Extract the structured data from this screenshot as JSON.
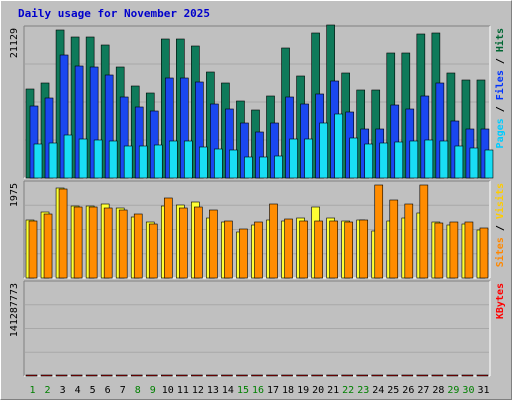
{
  "title": "Daily usage for November 2025",
  "chart_data": [
    {
      "type": "bar",
      "panel": "top",
      "max_label": "21129",
      "ylim": [
        0,
        21129
      ],
      "right_label_parts": [
        {
          "text": "Pages",
          "color": "#00ccff"
        },
        {
          "text": " / ",
          "color": "#000000"
        },
        {
          "text": "Files",
          "color": "#0033ff"
        },
        {
          "text": " / ",
          "color": "#000000"
        },
        {
          "text": "Hits",
          "color": "#006633"
        }
      ],
      "categories": [
        "1",
        "2",
        "3",
        "4",
        "5",
        "6",
        "7",
        "8",
        "9",
        "10",
        "11",
        "12",
        "13",
        "14",
        "15",
        "16",
        "17",
        "18",
        "19",
        "20",
        "21",
        "22",
        "23",
        "24",
        "25",
        "26",
        "27",
        "28",
        "29",
        "30",
        "31"
      ],
      "series": [
        {
          "name": "Hits",
          "color": "#0f7a5a",
          "values": [
            12700,
            13500,
            21129,
            20100,
            20100,
            19000,
            15800,
            13200,
            12100,
            19800,
            19800,
            18800,
            15200,
            13500,
            11000,
            9700,
            11700,
            18500,
            14500,
            20700,
            21800,
            15000,
            12600,
            12600,
            17800,
            17800,
            20500,
            20700,
            15000,
            14000,
            14000
          ]
        },
        {
          "name": "Files",
          "color": "#1a47f0",
          "values": [
            10300,
            11400,
            17600,
            16000,
            15900,
            14700,
            11500,
            10200,
            9600,
            14300,
            14300,
            13700,
            10600,
            9800,
            7900,
            6500,
            7800,
            11500,
            10600,
            12000,
            13800,
            9400,
            7000,
            7000,
            10400,
            9800,
            11700,
            13500,
            8100,
            7000,
            7000
          ]
        },
        {
          "name": "Pages",
          "color": "#19def5",
          "values": [
            4800,
            5000,
            6200,
            5600,
            5400,
            5300,
            4600,
            4600,
            4700,
            5300,
            5300,
            4400,
            4100,
            4000,
            3000,
            3000,
            3100,
            5500,
            5600,
            7800,
            9200,
            5700,
            4800,
            5000,
            5200,
            5300,
            5400,
            5300,
            4500,
            4300,
            4000
          ]
        }
      ]
    },
    {
      "type": "bar",
      "panel": "middle",
      "max_label": "1975",
      "ylim": [
        0,
        1975
      ],
      "right_label_parts": [
        {
          "text": "Sites",
          "color": "#ff8800"
        },
        {
          "text": " / ",
          "color": "#000000"
        },
        {
          "text": "Visits",
          "color": "#ffcc00"
        }
      ],
      "categories": [
        "1",
        "2",
        "3",
        "4",
        "5",
        "6",
        "7",
        "8",
        "9",
        "10",
        "11",
        "12",
        "13",
        "14",
        "15",
        "16",
        "17",
        "18",
        "19",
        "20",
        "21",
        "22",
        "23",
        "24",
        "25",
        "26",
        "27",
        "28",
        "29",
        "30",
        "31"
      ],
      "series": [
        {
          "name": "Visits",
          "color": "#ffff33",
          "values": [
            1240,
            1400,
            1920,
            1520,
            1530,
            1570,
            1480,
            1300,
            1190,
            1530,
            1560,
            1610,
            1270,
            1180,
            970,
            1130,
            1240,
            1200,
            1270,
            1510,
            1280,
            1200,
            1230,
            1000,
            1220,
            1270,
            1380,
            1180,
            1130,
            1150,
            1010
          ]
        },
        {
          "name": "Sites",
          "color": "#ff8c00",
          "values": [
            1210,
            1350,
            1880,
            1500,
            1500,
            1480,
            1440,
            1350,
            1140,
            1700,
            1490,
            1500,
            1450,
            1200,
            1050,
            1180,
            1580,
            1250,
            1200,
            1220,
            1220,
            1190,
            1240,
            1980,
            1650,
            1580,
            1980,
            1160,
            1190,
            1180,
            1060
          ]
        }
      ]
    },
    {
      "type": "bar",
      "panel": "bottom",
      "max_label": "141287773",
      "ylim": [
        0,
        141287773
      ],
      "right_label_parts": [
        {
          "text": "KBytes",
          "color": "#ff0000"
        }
      ],
      "categories": [
        "1",
        "2",
        "3",
        "4",
        "5",
        "6",
        "7",
        "8",
        "9",
        "10",
        "11",
        "12",
        "13",
        "14",
        "15",
        "16",
        "17",
        "18",
        "19",
        "20",
        "21",
        "22",
        "23",
        "24",
        "25",
        "26",
        "27",
        "28",
        "29",
        "30",
        "31"
      ],
      "series": [
        {
          "name": "KBytes",
          "color": "#ff0000",
          "values": [
            53000,
            54500,
            50500,
            52500,
            57000,
            98000,
            91000,
            100000,
            2000,
            96000,
            47000,
            47000,
            47000,
            45000,
            48000,
            51000,
            49000,
            50000,
            46000,
            46000,
            51000,
            55500,
            61000,
            55000,
            55000,
            122000,
            127000,
            45000,
            51000,
            54500,
            54000
          ]
        }
      ]
    }
  ],
  "x_label_colors": [
    "#008000",
    "#008000",
    "#000000",
    "#000000",
    "#000000",
    "#000000",
    "#000000",
    "#008000",
    "#008000",
    "#000000",
    "#000000",
    "#000000",
    "#000000",
    "#000000",
    "#008000",
    "#008000",
    "#000000",
    "#000000",
    "#000000",
    "#000000",
    "#000000",
    "#008000",
    "#008000",
    "#000000",
    "#000000",
    "#000000",
    "#000000",
    "#000000",
    "#008000",
    "#008000",
    "#000000"
  ]
}
